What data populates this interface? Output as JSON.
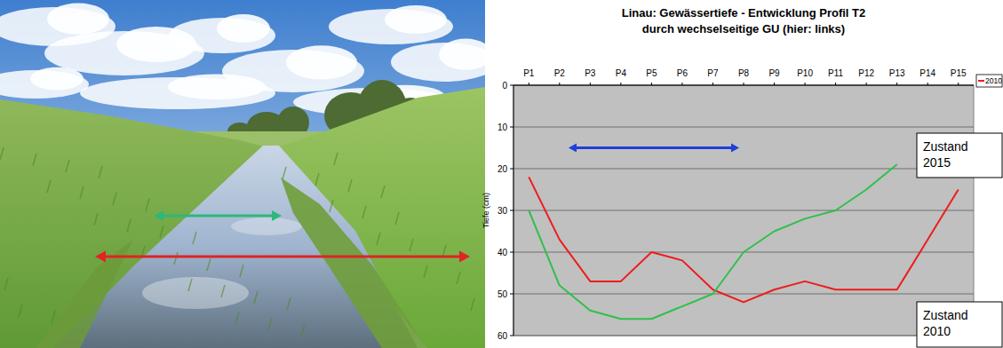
{
  "chart_data": {
    "type": "line",
    "title": "Linau: Gewässertiefe - Entwicklung Profil T2",
    "subtitle": "durch wechselseitige GU (hier: links)",
    "y_label": "Tiefe (cm)",
    "categories": [
      "P1",
      "P2",
      "P3",
      "P4",
      "P5",
      "P6",
      "P7",
      "P8",
      "P9",
      "P10",
      "P11",
      "P12",
      "P13",
      "P14",
      "P15"
    ],
    "series": [
      {
        "name": "2010",
        "color": "#ee1c1c",
        "line_style": "solid",
        "marker": "none",
        "values": [
          22,
          37,
          47,
          47,
          40,
          42,
          49,
          52,
          49,
          47,
          49,
          49,
          49,
          37,
          25
        ]
      },
      {
        "color": "#2ec04a",
        "line_style": "solid",
        "marker": "none",
        "values": [
          30,
          48,
          54,
          56,
          56,
          53,
          50,
          40,
          35,
          32,
          30,
          25,
          19,
          null,
          null
        ]
      }
    ],
    "ylim": [
      60,
      0
    ],
    "yticks": [
      0,
      10,
      20,
      30,
      40,
      50,
      60
    ],
    "grid": true,
    "legend": "right",
    "annotations": [
      "Zustand 2015",
      "Zustand 2010"
    ]
  }
}
